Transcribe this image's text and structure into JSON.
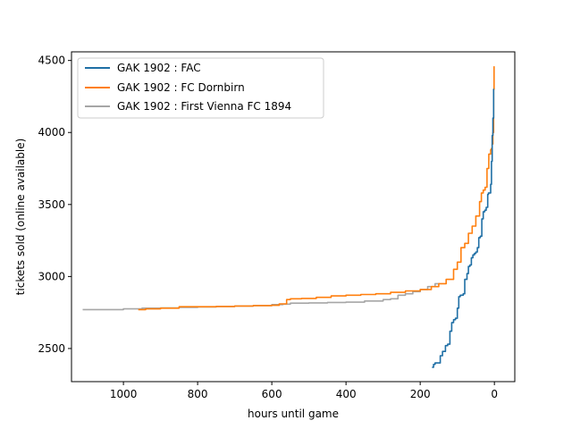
{
  "chart_data": {
    "type": "line",
    "title": "",
    "xlabel": "hours until game",
    "ylabel": "tickets sold (online available)",
    "x_inverted": true,
    "xlim": [
      1140,
      -55
    ],
    "ylim": [
      2270,
      4560
    ],
    "x_ticks": [
      1000,
      800,
      600,
      400,
      200,
      0
    ],
    "y_ticks": [
      2500,
      3000,
      3500,
      4000,
      4500
    ],
    "grid": false,
    "legend_position": "upper-left",
    "series": [
      {
        "name": "GAK 1902 : FAC",
        "color": "#1f6fa5",
        "x": [
          168,
          164,
          160,
          150,
          146,
          140,
          132,
          126,
          120,
          115,
          110,
          105,
          100,
          96,
          92,
          88,
          84,
          80,
          74,
          70,
          66,
          62,
          58,
          54,
          50,
          46,
          42,
          38,
          34,
          30,
          26,
          22,
          18,
          16,
          12,
          10,
          8,
          6,
          4,
          2,
          1
        ],
        "y": [
          2370,
          2390,
          2400,
          2400,
          2450,
          2480,
          2520,
          2530,
          2620,
          2680,
          2700,
          2710,
          2780,
          2860,
          2870,
          2870,
          2880,
          2980,
          3020,
          3070,
          3080,
          3130,
          3150,
          3160,
          3170,
          3200,
          3270,
          3280,
          3400,
          3450,
          3460,
          3480,
          3570,
          3580,
          3580,
          3640,
          3800,
          3980,
          4100,
          4300,
          4300
        ]
      },
      {
        "name": "GAK 1902 : FC Dornbirn",
        "color": "#ff7f0e",
        "x": [
          960,
          940,
          900,
          850,
          800,
          750,
          700,
          650,
          600,
          580,
          560,
          550,
          520,
          480,
          440,
          400,
          360,
          320,
          280,
          240,
          200,
          170,
          150,
          130,
          110,
          100,
          90,
          80,
          70,
          60,
          50,
          40,
          35,
          30,
          25,
          20,
          15,
          10,
          8,
          6,
          4,
          2,
          1
        ],
        "y": [
          2770,
          2775,
          2780,
          2790,
          2790,
          2792,
          2795,
          2798,
          2800,
          2810,
          2840,
          2845,
          2848,
          2855,
          2865,
          2870,
          2875,
          2880,
          2890,
          2900,
          2910,
          2930,
          2950,
          2980,
          3050,
          3100,
          3200,
          3230,
          3300,
          3350,
          3420,
          3520,
          3580,
          3600,
          3620,
          3750,
          3850,
          3880,
          3890,
          3920,
          4000,
          4300,
          4460
        ]
      },
      {
        "name": "GAK 1902 : First Vienna FC 1894",
        "color": "#a6a6a6",
        "x": [
          1110,
          1050,
          1000,
          950,
          900,
          850,
          800,
          750,
          700,
          650,
          600,
          570,
          550,
          500,
          450,
          400,
          350,
          300,
          280,
          260,
          240,
          220,
          200,
          180,
          160,
          150
        ],
        "y": [
          2770,
          2770,
          2775,
          2780,
          2782,
          2785,
          2788,
          2792,
          2795,
          2798,
          2805,
          2808,
          2815,
          2817,
          2820,
          2822,
          2830,
          2840,
          2845,
          2870,
          2880,
          2895,
          2910,
          2930,
          2950,
          2955
        ]
      }
    ]
  }
}
